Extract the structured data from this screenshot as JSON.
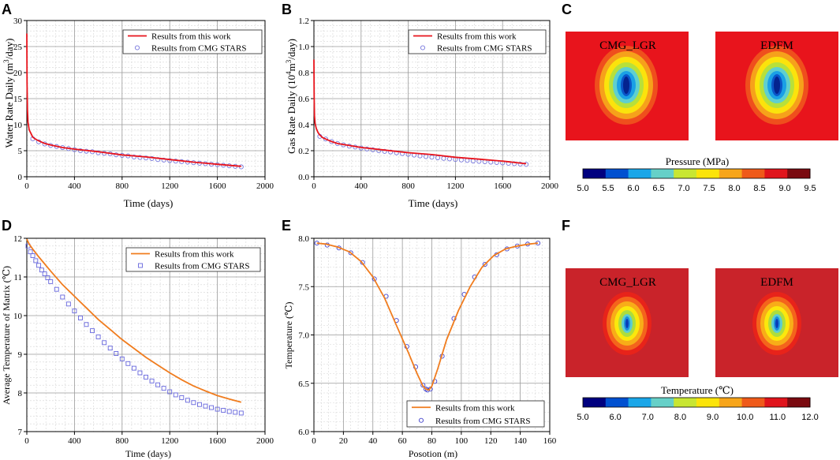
{
  "chart_data": [
    {
      "panel": "A",
      "type": "line",
      "xlabel": "Time (days)",
      "ylabel_main": "Water Rate Daily (m",
      "ylabel_sup": "3",
      "ylabel_end": "/day)",
      "xlim": [
        0,
        2000
      ],
      "ylim": [
        0,
        30
      ],
      "xticks": [
        0,
        400,
        800,
        1200,
        1600,
        2000
      ],
      "yticks": [
        0,
        5,
        10,
        15,
        20,
        25,
        30
      ],
      "series": [
        {
          "name": "Results from this work",
          "style": "line",
          "color": "#e8141c",
          "x": [
            0,
            2,
            5,
            10,
            20,
            35,
            50,
            75,
            100,
            150,
            200,
            300,
            400,
            600,
            800,
            1000,
            1200,
            1400,
            1600,
            1800
          ],
          "y": [
            27.5,
            18,
            13,
            10.5,
            9,
            8.3,
            7.6,
            7.2,
            6.9,
            6.4,
            6.1,
            5.6,
            5.3,
            4.8,
            4.2,
            3.8,
            3.3,
            2.8,
            2.4,
            2.0
          ]
        },
        {
          "name": "Results from CMG STARS",
          "style": "markers",
          "color": "#7777dd",
          "x": [
            50,
            100,
            150,
            200,
            250,
            300,
            350,
            400,
            450,
            500,
            550,
            600,
            650,
            700,
            750,
            800,
            850,
            900,
            950,
            1000,
            1050,
            1100,
            1150,
            1200,
            1250,
            1300,
            1350,
            1400,
            1450,
            1500,
            1550,
            1600,
            1650,
            1700,
            1750,
            1800
          ],
          "y": [
            7.3,
            6.7,
            6.3,
            6.0,
            5.8,
            5.6,
            5.4,
            5.2,
            5.0,
            4.9,
            4.8,
            4.6,
            4.5,
            4.4,
            4.2,
            4.1,
            4.0,
            3.8,
            3.7,
            3.6,
            3.5,
            3.3,
            3.2,
            3.1,
            3.0,
            2.9,
            2.8,
            2.7,
            2.6,
            2.5,
            2.4,
            2.3,
            2.2,
            2.1,
            2.0,
            1.9
          ]
        }
      ]
    },
    {
      "panel": "B",
      "type": "line",
      "xlabel": "Time (days)",
      "ylabel_main": "Gas Rate Daily (10",
      "ylabel_sup": "4",
      "ylabel_mid": "m",
      "ylabel_sup2": "3",
      "ylabel_end": "/day)",
      "xlim": [
        0,
        2000
      ],
      "ylim": [
        0,
        1.2
      ],
      "xticks": [
        0,
        400,
        800,
        1200,
        1600,
        2000
      ],
      "yticks": [
        0.0,
        0.2,
        0.4,
        0.6,
        0.8,
        1.0,
        1.2
      ],
      "series": [
        {
          "name": "Results from this work",
          "style": "line",
          "color": "#e8141c",
          "x": [
            0,
            2,
            5,
            10,
            20,
            35,
            50,
            75,
            100,
            150,
            200,
            300,
            400,
            600,
            800,
            1000,
            1200,
            1400,
            1600,
            1800
          ],
          "y": [
            0.9,
            0.62,
            0.47,
            0.41,
            0.37,
            0.34,
            0.32,
            0.3,
            0.29,
            0.27,
            0.255,
            0.24,
            0.225,
            0.205,
            0.185,
            0.17,
            0.15,
            0.135,
            0.12,
            0.1
          ]
        },
        {
          "name": "Results from CMG STARS",
          "style": "markers",
          "color": "#7777dd",
          "x": [
            50,
            100,
            150,
            200,
            250,
            300,
            350,
            400,
            450,
            500,
            550,
            600,
            650,
            700,
            750,
            800,
            850,
            900,
            950,
            1000,
            1050,
            1100,
            1150,
            1200,
            1250,
            1300,
            1350,
            1400,
            1450,
            1500,
            1550,
            1600,
            1650,
            1700,
            1750,
            1800
          ],
          "y": [
            0.31,
            0.29,
            0.27,
            0.255,
            0.245,
            0.235,
            0.228,
            0.22,
            0.213,
            0.207,
            0.2,
            0.195,
            0.19,
            0.184,
            0.178,
            0.172,
            0.166,
            0.16,
            0.155,
            0.15,
            0.146,
            0.141,
            0.137,
            0.133,
            0.129,
            0.125,
            0.121,
            0.118,
            0.115,
            0.112,
            0.109,
            0.106,
            0.103,
            0.1,
            0.097,
            0.095
          ]
        }
      ]
    },
    {
      "panel": "D",
      "type": "line",
      "xlabel": "Time (days)",
      "ylabel_main": "Average Temperature of  Matrix (",
      "ylabel_end": "℃)",
      "xlim": [
        0,
        2000
      ],
      "ylim": [
        7,
        12
      ],
      "xticks": [
        0,
        400,
        800,
        1200,
        1600,
        2000
      ],
      "yticks": [
        7,
        8,
        9,
        10,
        11,
        12
      ],
      "series": [
        {
          "name": "Results from this work",
          "style": "line",
          "color": "#f07c1e",
          "x": [
            0,
            20,
            50,
            100,
            200,
            300,
            400,
            500,
            600,
            700,
            800,
            900,
            1000,
            1100,
            1200,
            1300,
            1400,
            1500,
            1600,
            1700,
            1800
          ],
          "y": [
            11.98,
            11.85,
            11.72,
            11.52,
            11.15,
            10.8,
            10.5,
            10.2,
            9.9,
            9.64,
            9.38,
            9.15,
            8.92,
            8.72,
            8.52,
            8.34,
            8.18,
            8.05,
            7.93,
            7.84,
            7.76
          ]
        },
        {
          "name": "Results from CMG STARS",
          "style": "markers",
          "color": "#6666dd",
          "x": [
            10,
            30,
            50,
            75,
            100,
            125,
            150,
            175,
            200,
            250,
            300,
            350,
            400,
            450,
            500,
            550,
            600,
            650,
            700,
            750,
            800,
            850,
            900,
            950,
            1000,
            1050,
            1100,
            1150,
            1200,
            1250,
            1300,
            1350,
            1400,
            1450,
            1500,
            1550,
            1600,
            1650,
            1700,
            1750,
            1800
          ],
          "y": [
            11.8,
            11.65,
            11.55,
            11.42,
            11.3,
            11.18,
            11.08,
            10.98,
            10.88,
            10.68,
            10.48,
            10.3,
            10.12,
            9.94,
            9.77,
            9.61,
            9.45,
            9.3,
            9.16,
            9.02,
            8.88,
            8.76,
            8.64,
            8.52,
            8.41,
            8.31,
            8.21,
            8.12,
            8.03,
            7.95,
            7.88,
            7.81,
            7.75,
            7.7,
            7.66,
            7.62,
            7.58,
            7.55,
            7.52,
            7.5,
            7.48
          ]
        }
      ]
    },
    {
      "panel": "E",
      "type": "line",
      "xlabel": "Posotion (m)",
      "ylabel_main": "Temperature (",
      "ylabel_end": "℃)",
      "xlim": [
        0,
        160
      ],
      "ylim": [
        6.0,
        8.0
      ],
      "xticks": [
        0,
        20,
        40,
        60,
        80,
        100,
        120,
        140,
        160
      ],
      "yticks": [
        6.0,
        6.5,
        7.0,
        7.5,
        8.0
      ],
      "series": [
        {
          "name": "Results from this work",
          "style": "line",
          "color": "#f07c1e",
          "x": [
            2,
            8,
            16,
            24,
            32,
            40,
            48,
            56,
            64,
            70,
            74,
            76,
            78,
            80,
            84,
            90,
            98,
            106,
            114,
            122,
            130,
            138,
            146,
            152
          ],
          "y": [
            7.95,
            7.94,
            7.91,
            7.86,
            7.76,
            7.6,
            7.38,
            7.1,
            6.82,
            6.6,
            6.47,
            6.44,
            6.43,
            6.47,
            6.65,
            6.95,
            7.25,
            7.5,
            7.7,
            7.82,
            7.89,
            7.92,
            7.94,
            7.95
          ]
        },
        {
          "name": "Results from CMG STARS",
          "style": "markers",
          "color": "#4444cc",
          "x": [
            2,
            9,
            17,
            25,
            33,
            41,
            49,
            56,
            63,
            69,
            74,
            76,
            77,
            79,
            82,
            87,
            95,
            102,
            109,
            116,
            124,
            131,
            138,
            145,
            152
          ],
          "y": [
            7.95,
            7.93,
            7.9,
            7.85,
            7.75,
            7.58,
            7.4,
            7.15,
            6.88,
            6.67,
            6.48,
            6.44,
            6.43,
            6.44,
            6.52,
            6.78,
            7.17,
            7.42,
            7.6,
            7.73,
            7.83,
            7.89,
            7.92,
            7.94,
            7.95
          ]
        }
      ]
    }
  ],
  "maps": {
    "top": {
      "panel": "C",
      "left_title": "CMG_LGR",
      "right_title": "EDFM",
      "colorbar_title": "Pressure (MPa)",
      "colorbar_ticks": [
        "5.0",
        "5.5",
        "6.0",
        "6.5",
        "7.0",
        "7.5",
        "8.0",
        "8.5",
        "9.0",
        "9.5"
      ]
    },
    "bottom": {
      "panel": "F",
      "left_title": "CMG_LGR",
      "right_title": "EDFM",
      "colorbar_title": "Temperature (℃)",
      "colorbar_ticks": [
        "5.0",
        "6.0",
        "7.0",
        "8.0",
        "9.0",
        "10.0",
        "11.0",
        "12.0"
      ]
    }
  },
  "panel_letters": [
    "A",
    "B",
    "C",
    "D",
    "E",
    "F"
  ],
  "colors": {
    "map_top_background": "#e8141c",
    "map_bottom_background": "#c9232a",
    "jet": [
      "#00007f",
      "#0050d0",
      "#1aa6e8",
      "#66d0c8",
      "#c8e632",
      "#fbe40a",
      "#f7a51a",
      "#ef5a1a",
      "#e0141c",
      "#7a0a10"
    ]
  }
}
